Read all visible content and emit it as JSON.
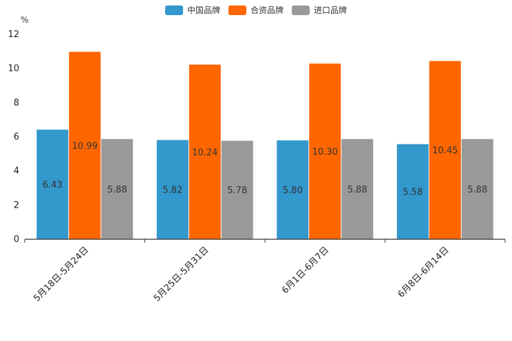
{
  "chart_data": {
    "type": "bar",
    "title": "",
    "xlabel": "",
    "ylabel": "%",
    "ylim": [
      0,
      12
    ],
    "yticks": [
      0,
      2,
      4,
      6,
      8,
      10,
      12
    ],
    "categories": [
      "5月18日-5月24日",
      "5月25日-5月31日",
      "6月1日-6月7日",
      "6月8日-6月14日"
    ],
    "series": [
      {
        "name": "中国品牌",
        "color": "#3398cc",
        "values": [
          6.43,
          5.82,
          5.8,
          5.58
        ],
        "labels": [
          "6.43",
          "5.82",
          "5.80",
          "5.58"
        ]
      },
      {
        "name": "合资品牌",
        "color": "#ff6600",
        "values": [
          10.99,
          10.24,
          10.3,
          10.45
        ],
        "labels": [
          "10.99",
          "10.24",
          "10.30",
          "10.45"
        ]
      },
      {
        "name": "进口品牌",
        "color": "#999999",
        "values": [
          5.88,
          5.78,
          5.88,
          5.88
        ],
        "labels": [
          "5.88",
          "5.78",
          "5.88",
          "5.88"
        ]
      }
    ],
    "legend_position": "top-center",
    "grid": false
  }
}
